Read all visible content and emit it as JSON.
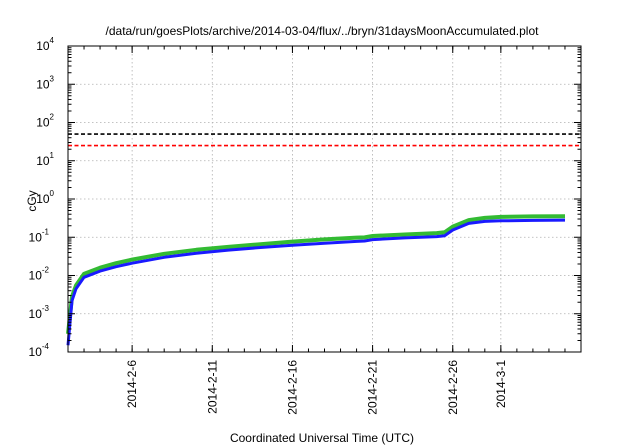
{
  "chart_data": {
    "type": "line",
    "title": "/data/run/goesPlots/archive/2014-03-04/flux/../bryn/31daysMoonAccumulated.plot",
    "xlabel": "Coordinated Universal Time (UTC)",
    "ylabel": "cGy",
    "x_range": [
      "2014-02-02",
      "2014-03-06"
    ],
    "x_ticks": [
      "2014-2-6",
      "2014-2-11",
      "2014-2-16",
      "2014-2-21",
      "2014-2-26",
      "2014-3-1"
    ],
    "y_scale": "log",
    "ylim": [
      0.0001,
      10000
    ],
    "y_ticks": [
      {
        "base": "10",
        "exp": "-4"
      },
      {
        "base": "10",
        "exp": "-3"
      },
      {
        "base": "10",
        "exp": "-2"
      },
      {
        "base": "10",
        "exp": "-1"
      },
      {
        "base": "10",
        "exp": "0"
      },
      {
        "base": "10",
        "exp": "1"
      },
      {
        "base": "10",
        "exp": "2"
      },
      {
        "base": "10",
        "exp": "3"
      },
      {
        "base": "10",
        "exp": "4"
      }
    ],
    "grid": true,
    "colors": {
      "green": "#33bb33",
      "blue": "#1a1aff",
      "black_ref": "#000000",
      "red_ref": "#ff0000",
      "grid": "#b0b0b0"
    },
    "reference_lines": [
      {
        "color": "black",
        "style": "dashed",
        "y": 50
      },
      {
        "color": "red",
        "style": "dashed",
        "y": 25
      }
    ],
    "series": [
      {
        "color": "green",
        "x": [
          "2014-02-02T00:00",
          "2014-02-02T06:00",
          "2014-02-02T12:00",
          "2014-02-03T00:00",
          "2014-02-04T00:00",
          "2014-02-05T00:00",
          "2014-02-06T00:00",
          "2014-02-08T00:00",
          "2014-02-10T00:00",
          "2014-02-12T00:00",
          "2014-02-14T00:00",
          "2014-02-16T00:00",
          "2014-02-18T00:00",
          "2014-02-20T00:00",
          "2014-02-20T12:00",
          "2014-02-21T00:00",
          "2014-02-23T00:00",
          "2014-02-25T00:00",
          "2014-02-25T12:00",
          "2014-02-26T00:00",
          "2014-02-27T00:00",
          "2014-02-28T00:00",
          "2014-03-01T00:00",
          "2014-03-03T00:00",
          "2014-03-05T00:00"
        ],
        "y": [
          0.0003,
          0.0028,
          0.0055,
          0.011,
          0.016,
          0.021,
          0.026,
          0.037,
          0.047,
          0.056,
          0.066,
          0.077,
          0.088,
          0.098,
          0.099,
          0.108,
          0.118,
          0.128,
          0.135,
          0.19,
          0.28,
          0.32,
          0.34,
          0.35,
          0.355
        ]
      },
      {
        "color": "blue",
        "x": [
          "2014-02-02T00:00",
          "2014-02-02T06:00",
          "2014-02-02T12:00",
          "2014-02-03T00:00",
          "2014-02-04T00:00",
          "2014-02-05T00:00",
          "2014-02-06T00:00",
          "2014-02-08T00:00",
          "2014-02-10T00:00",
          "2014-02-12T00:00",
          "2014-02-14T00:00",
          "2014-02-16T00:00",
          "2014-02-18T00:00",
          "2014-02-20T00:00",
          "2014-02-20T12:00",
          "2014-02-21T00:00",
          "2014-02-23T00:00",
          "2014-02-25T00:00",
          "2014-02-25T12:00",
          "2014-02-26T00:00",
          "2014-02-27T00:00",
          "2014-02-28T00:00",
          "2014-03-01T00:00",
          "2014-03-03T00:00",
          "2014-03-05T00:00"
        ],
        "y": [
          0.00015,
          0.0022,
          0.0045,
          0.009,
          0.013,
          0.017,
          0.021,
          0.03,
          0.038,
          0.046,
          0.054,
          0.062,
          0.07,
          0.078,
          0.08,
          0.087,
          0.096,
          0.104,
          0.11,
          0.155,
          0.23,
          0.26,
          0.27,
          0.275,
          0.28
        ]
      }
    ]
  }
}
